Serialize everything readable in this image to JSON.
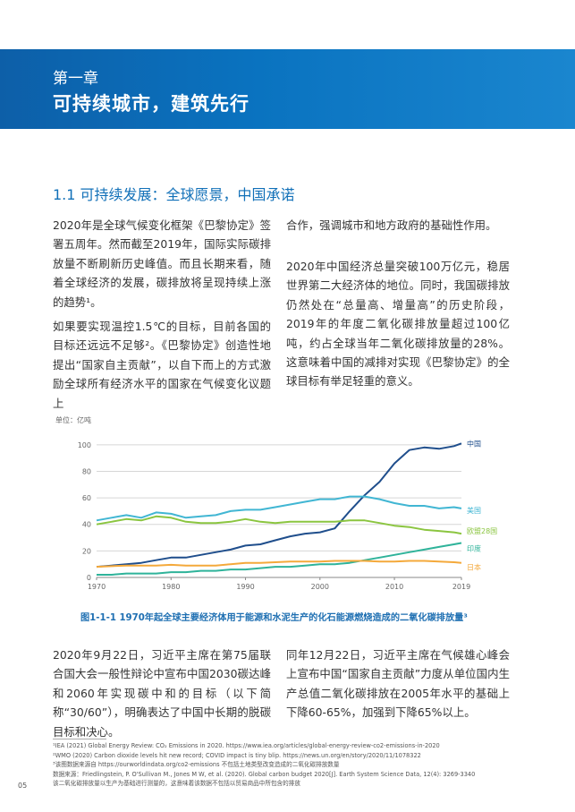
{
  "banner": {
    "chapter": "第一章",
    "title": "可持续城市，建筑先行"
  },
  "section": {
    "title": "1.1 可持续发展：全球愿景，中国承诺"
  },
  "paragraphs": {
    "p1": "2020年是全球气候变化框架《巴黎协定》签署五周年。然而截至2019年，国际实际碳排放量不断刷新历史峰值。而且长期来看，随着全球经济的发展，碳排放将呈现持续上涨的趋势¹。",
    "p2": "如果要实现温控1.5℃的目标，目前各国的目标还远远不足够²。《巴黎协定》创造性地提出“国家自主贡献”，以自下而上的方式激励全球所有经济水平的国家在气候变化议题上",
    "p3": "合作，强调城市和地方政府的基础性作用。",
    "p4": "2020年中国经济总量突破100万亿元，稳居世界第二大经济体的地位。同时，我国碳排放仍然处在“总量高、增量高”的历史阶段，2019年的年度二氧化碳排放量超过100亿吨，约占全球当年二氧化碳排放量的28%。这意味着中国的减排对实现《巴黎协定》的全球目标有举足轻重的意义。",
    "p5": "2020年9月22日，习近平主席在第75届联合国大会一般性辩论中宣布中国2030碳达峰和2060年实现碳中和的目标（以下简称“30/60”），明确表达了中国中长期的脱碳目标和决心。",
    "p6": "同年12月22日，习近平主席在气候雄心峰会上宣布中国“国家自主贡献”力度从单位国内生产总值二氧化碳排放在2005年水平的基础上下降60-65%，加强到下降65%以上。"
  },
  "chart_data": {
    "type": "line",
    "unit_label": "单位：亿吨",
    "title": "图1-1-1 1970年起全球主要经济体用于能源和水泥生产的化石能源燃烧造成的二氧化碳排放量³",
    "xlim": [
      1970,
      2019
    ],
    "ylim": [
      0,
      110
    ],
    "x_ticks": [
      "1970",
      "1980",
      "1990",
      "2000",
      "2010",
      "2019"
    ],
    "y_ticks": [
      "0",
      "20",
      "40",
      "60",
      "80",
      "100"
    ],
    "x": [
      1970,
      1972,
      1974,
      1976,
      1978,
      1980,
      1982,
      1984,
      1986,
      1988,
      1990,
      1992,
      1994,
      1996,
      1998,
      2000,
      2002,
      2004,
      2006,
      2008,
      2010,
      2012,
      2014,
      2016,
      2018,
      2019
    ],
    "series": [
      {
        "name": "中国",
        "color": "#1f4e8c",
        "values": [
          8,
          9,
          10,
          11,
          13,
          15,
          15,
          17,
          19,
          21,
          24,
          25,
          28,
          31,
          33,
          34,
          37,
          50,
          62,
          72,
          86,
          96,
          98,
          97,
          99,
          101
        ]
      },
      {
        "name": "美国",
        "color": "#41b6d3",
        "values": [
          43,
          45,
          47,
          45,
          49,
          48,
          45,
          46,
          47,
          50,
          51,
          51,
          53,
          55,
          57,
          59,
          59,
          61,
          61,
          59,
          56,
          54,
          54,
          52,
          53,
          52
        ]
      },
      {
        "name": "欧盟28国",
        "color": "#8bc540",
        "values": [
          40,
          42,
          44,
          43,
          46,
          45,
          42,
          41,
          41,
          42,
          44,
          42,
          41,
          42,
          42,
          42,
          42,
          43,
          43,
          41,
          39,
          38,
          36,
          35,
          34,
          33
        ]
      },
      {
        "name": "印度",
        "color": "#2fb39a",
        "values": [
          2,
          2,
          3,
          3,
          3,
          4,
          4,
          5,
          5,
          6,
          6,
          7,
          8,
          8,
          9,
          10,
          10,
          11,
          13,
          15,
          17,
          19,
          21,
          23,
          25,
          26
        ]
      },
      {
        "name": "日本",
        "color": "#f4a93b",
        "values": [
          8,
          8.5,
          9,
          9,
          9,
          9.5,
          9,
          9,
          9,
          10,
          11,
          11,
          11.5,
          12,
          12,
          12,
          12.5,
          12.5,
          12.5,
          12,
          12,
          12.5,
          12.5,
          12,
          11.5,
          11
        ]
      }
    ]
  },
  "footnotes": {
    "n1": "¹IEA (2021) Global Energy Review: CO₂ Emissions in 2020. https://www.iea.org/articles/global-energy-review-co2-emissions-in-2020",
    "n2": "²WMO (2020) Carbon dioxide levels hit new record; COVID impact is tiny blip. https://news.un.org/en/story/2020/11/1078322",
    "n3": "³该图数据来源自 https://ourworldindata.org/co2-emissions 不包括土地类型改变造成的二氧化碳排放数量",
    "n4": "数据来源：Friedlingstein, P. O'Sullivan M., Jones M W, et al. (2020). Global carbon budget 2020[J]. Earth System Science Data, 12(4): 3269-3340",
    "n5": "该二氧化碳排放量以生产为基础进行测量的，这意味着该数据不包括以贸易商品中所包含的排放"
  },
  "page_number": "05"
}
